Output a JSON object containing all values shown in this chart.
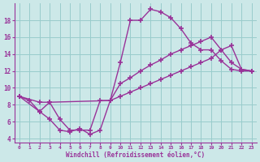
{
  "xlabel": "Windchill (Refroidissement éolien,°C)",
  "bg_color": "#cce8e8",
  "grid_color": "#99cccc",
  "line_color": "#993399",
  "marker": "+",
  "markersize": 4,
  "linewidth": 1.0,
  "xlim": [
    -0.5,
    23.5
  ],
  "ylim": [
    3.5,
    20
  ],
  "xticks": [
    0,
    1,
    2,
    3,
    4,
    5,
    6,
    7,
    8,
    9,
    10,
    11,
    12,
    13,
    14,
    15,
    16,
    17,
    18,
    19,
    20,
    21,
    22,
    23
  ],
  "yticks": [
    4,
    6,
    8,
    10,
    12,
    14,
    16,
    18
  ],
  "series": [
    {
      "x": [
        0,
        1,
        2,
        3,
        4,
        5,
        6,
        7,
        8,
        9,
        10,
        11,
        12,
        13,
        14,
        15,
        16,
        17,
        18,
        19,
        20,
        21,
        22,
        23
      ],
      "y": [
        9.0,
        8.5,
        7.2,
        8.3,
        6.3,
        5.0,
        5.0,
        5.0,
        8.5,
        8.5,
        13.0,
        18.0,
        18.0,
        19.3,
        19.0,
        18.3,
        17.0,
        15.3,
        14.5,
        14.5,
        13.2,
        12.2,
        12.0,
        12.0
      ]
    },
    {
      "x": [
        0,
        2,
        3,
        9,
        10,
        11,
        12,
        13,
        14,
        15,
        16,
        17,
        18,
        19,
        20,
        21,
        22,
        23
      ],
      "y": [
        9.0,
        8.3,
        8.3,
        8.5,
        10.5,
        11.2,
        12.0,
        12.7,
        13.3,
        14.0,
        14.5,
        15.0,
        15.5,
        16.0,
        14.5,
        15.0,
        12.2,
        12.0
      ]
    },
    {
      "x": [
        0,
        2,
        3,
        4,
        5,
        6,
        7,
        8,
        9,
        10,
        11,
        12,
        13,
        14,
        15,
        16,
        17,
        18,
        19,
        20,
        21,
        22,
        23
      ],
      "y": [
        9.0,
        7.2,
        6.3,
        5.0,
        4.8,
        5.2,
        4.5,
        5.0,
        8.5,
        9.0,
        9.5,
        10.0,
        10.5,
        11.0,
        11.5,
        12.0,
        12.5,
        13.0,
        13.5,
        14.5,
        13.0,
        12.2,
        12.0
      ]
    }
  ]
}
